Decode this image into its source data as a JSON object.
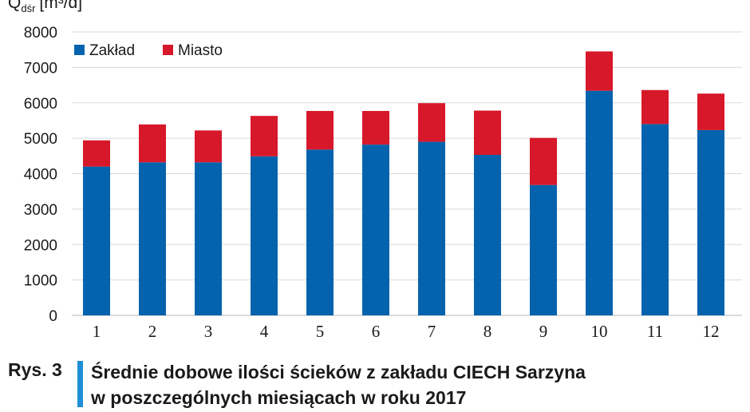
{
  "chart_data": {
    "type": "bar",
    "stacked": true,
    "ylabel_main": "Q",
    "ylabel_sub": "dśr",
    "ylabel_unit": "[m³/d]",
    "categories": [
      "1",
      "2",
      "3",
      "4",
      "5",
      "6",
      "7",
      "8",
      "9",
      "10",
      "11",
      "12"
    ],
    "series": [
      {
        "name": "Zakład",
        "color": "#0563ad",
        "values": [
          4200,
          4320,
          4320,
          4490,
          4680,
          4820,
          4900,
          4530,
          3680,
          6340,
          5400,
          5230
        ]
      },
      {
        "name": "Miasto",
        "color": "#d7182a",
        "values": [
          740,
          1070,
          900,
          1140,
          1090,
          950,
          1090,
          1250,
          1330,
          1110,
          960,
          1030
        ]
      }
    ],
    "y_ticks": [
      "0",
      "1000",
      "2000",
      "3000",
      "4000",
      "5000",
      "6000",
      "7000",
      "8000"
    ],
    "ylim": [
      0,
      8000
    ],
    "grid": true,
    "legend": "top-left"
  },
  "caption": {
    "label": "Rys. 3",
    "text_line1": "Średnie dobowe ilości ścieków z zakładu CIECH Sarzyna",
    "text_line2": "w poszczególnych miesiącach w roku 2017"
  }
}
